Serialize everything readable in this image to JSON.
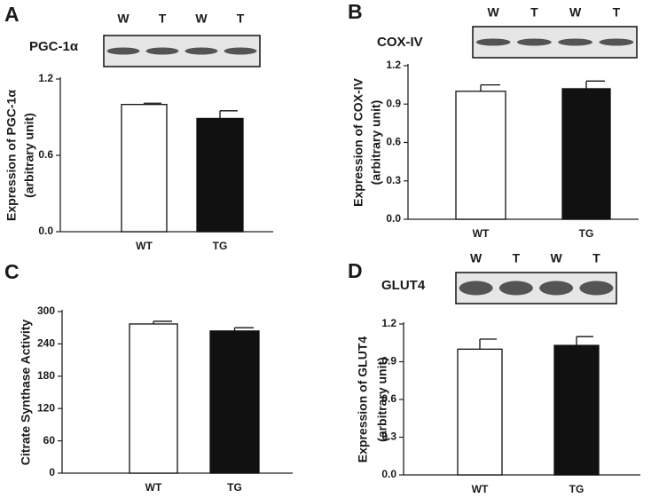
{
  "chart_data": [
    {
      "type": "bar",
      "panel_label": "A",
      "blot_name": "PGC-1α",
      "blot_lanes": [
        "W",
        "T",
        "W",
        "T"
      ],
      "ylabel": [
        "Expression of PGC-1α",
        "(arbitrary unit)"
      ],
      "categories": [
        "WT",
        "TG"
      ],
      "values": [
        1.0,
        0.89
      ],
      "errors": [
        0.01,
        0.06
      ],
      "colors": [
        "#ffffff",
        "#111111"
      ],
      "ylim": [
        0,
        1.2
      ],
      "yticks": [
        {
          "value": 0,
          "label": "0.0"
        },
        0.6,
        1.2
      ]
    },
    {
      "type": "bar",
      "panel_label": "B",
      "blot_name": "COX-IV",
      "blot_lanes": [
        "W",
        "T",
        "W",
        "T"
      ],
      "ylabel": [
        "Expression of COX-IV",
        "(arbitrary unit)"
      ],
      "categories": [
        "WT",
        "TG"
      ],
      "values": [
        1.0,
        1.02
      ],
      "errors": [
        0.05,
        0.06
      ],
      "colors": [
        "#ffffff",
        "#111111"
      ],
      "ylim": [
        0,
        1.2
      ],
      "yticks": [
        {
          "value": 0,
          "label": "0.0"
        },
        0.3,
        0.6,
        0.9,
        1.2
      ]
    },
    {
      "type": "bar",
      "panel_label": "C",
      "ylabel": [
        "Citrate Synthase Activity"
      ],
      "categories": [
        "WT",
        "TG"
      ],
      "values": [
        277,
        264
      ],
      "errors": [
        5,
        6
      ],
      "colors": [
        "#ffffff",
        "#111111"
      ],
      "ylim": [
        0,
        300
      ],
      "yticks": [
        0,
        60,
        120,
        180,
        240,
        300
      ]
    },
    {
      "type": "bar",
      "panel_label": "D",
      "blot_name": "GLUT4",
      "blot_lanes": [
        "W",
        "T",
        "W",
        "T"
      ],
      "ylabel": [
        "Expression of GLUT4",
        "(arbitrary unit)"
      ],
      "categories": [
        "WT",
        "TG"
      ],
      "values": [
        1.0,
        1.03
      ],
      "errors": [
        0.08,
        0.07
      ],
      "colors": [
        "#ffffff",
        "#111111"
      ],
      "ylim": [
        0,
        1.2
      ],
      "yticks": [
        {
          "value": 0,
          "label": "0.0"
        },
        0.3,
        0.6,
        0.9,
        1.2
      ]
    }
  ]
}
